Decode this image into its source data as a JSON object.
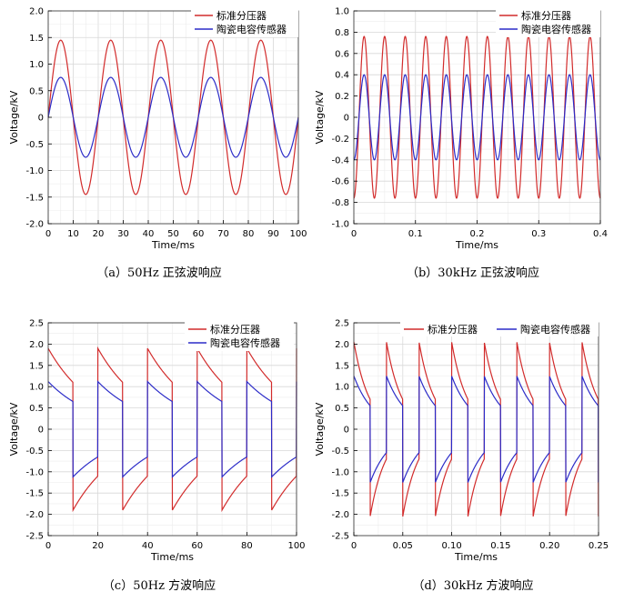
{
  "chart_data": [
    {
      "id": "a",
      "type": "line",
      "caption": "（a）50Hz 正弦波响应",
      "xlabel": "Time/ms",
      "ylabel": "Voltage/kV",
      "xlim": [
        0,
        100
      ],
      "ylim": [
        -2.0,
        2.0
      ],
      "xticks": [
        0,
        10,
        20,
        30,
        40,
        50,
        60,
        70,
        80,
        90,
        100
      ],
      "yticks": [
        -2.0,
        -1.5,
        -1.0,
        -0.5,
        0,
        0.5,
        1.0,
        1.5,
        2.0
      ],
      "ytick_labels": [
        "-2.0",
        "-1.5",
        "-1.0",
        "-0.5",
        "0",
        "0.5",
        "1.0",
        "1.5",
        "2.0"
      ],
      "xtick_labels": [
        "0",
        "10",
        "20",
        "30",
        "40",
        "50",
        "60",
        "70",
        "80",
        "90",
        "100"
      ],
      "grid": true,
      "legend_position": "top-right",
      "waveform": "sine",
      "frequency_per_x_unit": 0.05,
      "series": [
        {
          "name": "标准分压器",
          "color": "#d22b2b",
          "amplitude": 1.45,
          "phase_deg": 0
        },
        {
          "name": "陶瓷电容传感器",
          "color": "#2b2bc8",
          "amplitude": 0.75,
          "phase_deg": 0
        }
      ]
    },
    {
      "id": "b",
      "type": "line",
      "caption": "（b）30kHz 正弦波响应",
      "xlabel": "Time/ms",
      "ylabel": "Voltage/kV",
      "xlim": [
        0,
        0.4
      ],
      "ylim": [
        -1.0,
        1.0
      ],
      "xticks": [
        0,
        0.1,
        0.2,
        0.3,
        0.4
      ],
      "xtick_labels": [
        "0",
        "0.1",
        "0.2",
        "0.3",
        "0.4"
      ],
      "yticks": [
        -1.0,
        -0.8,
        -0.6,
        -0.4,
        -0.2,
        0,
        0.2,
        0.4,
        0.6,
        0.8,
        1.0
      ],
      "ytick_labels": [
        "-1.0",
        "-0.8",
        "-0.6",
        "-0.4",
        "-0.2",
        "0",
        "0.2",
        "0.4",
        "0.6",
        "0.8",
        "1.0"
      ],
      "grid": true,
      "legend_position": "top-right",
      "waveform": "sine",
      "frequency_per_x_unit": 30,
      "series": [
        {
          "name": "标准分压器",
          "color": "#d22b2b",
          "amplitude": 0.76,
          "phase_deg": -90
        },
        {
          "name": "陶瓷电容传感器",
          "color": "#2b2bc8",
          "amplitude": 0.4,
          "phase_deg": -90
        }
      ]
    },
    {
      "id": "c",
      "type": "line",
      "caption": "（c）50Hz 方波响应",
      "xlabel": "Time/ms",
      "ylabel": "Voltage/kV",
      "xlim": [
        0,
        100
      ],
      "ylim": [
        -2.5,
        2.5
      ],
      "xticks": [
        0,
        20,
        40,
        60,
        80,
        100
      ],
      "xtick_labels": [
        "0",
        "20",
        "40",
        "60",
        "80",
        "100"
      ],
      "yticks": [
        -2.5,
        -2.0,
        -1.5,
        -1.0,
        -0.5,
        0,
        0.5,
        1.0,
        1.5,
        2.0,
        2.5
      ],
      "ytick_labels": [
        "-2.5",
        "-2.0",
        "-1.5",
        "-1.0",
        "-0.5",
        "0",
        "0.5",
        "1.0",
        "1.5",
        "2.0",
        "2.5"
      ],
      "grid": true,
      "legend_position": "top-right",
      "waveform": "square_decay",
      "period": 20,
      "first_edge": 10,
      "series": [
        {
          "name": "标准分压器",
          "color": "#d22b2b",
          "peak": 1.9,
          "end": 1.1
        },
        {
          "name": "陶瓷电容传感器",
          "color": "#2b2bc8",
          "peak": 1.12,
          "end": 0.65
        }
      ]
    },
    {
      "id": "d",
      "type": "line",
      "caption": "（d）30kHz 方波响应",
      "xlabel": "Time/ms",
      "ylabel": "Voltage/kV",
      "xlim": [
        0,
        0.25
      ],
      "ylim": [
        -2.5,
        2.5
      ],
      "xticks": [
        0,
        0.05,
        0.1,
        0.15,
        0.2,
        0.25
      ],
      "xtick_labels": [
        "0",
        "0.05",
        "0.10",
        "0.15",
        "0.20",
        "0.25"
      ],
      "yticks": [
        -2.5,
        -2.0,
        -1.5,
        -1.0,
        -0.5,
        0,
        0.5,
        1.0,
        1.5,
        2.0,
        2.5
      ],
      "ytick_labels": [
        "-2.5",
        "-2.0",
        "-1.5",
        "-1.0",
        "-0.5",
        "0",
        "0.5",
        "1.0",
        "1.5",
        "2.0",
        "2.5"
      ],
      "grid": true,
      "legend_position": "top-right",
      "waveform": "square_decay",
      "period": 0.0333,
      "first_edge": 0.0167,
      "series": [
        {
          "name": "标准分压器",
          "color": "#d22b2b",
          "peak": 2.05,
          "end": 0.7
        },
        {
          "name": "陶瓷电容传感器",
          "color": "#2b2bc8",
          "peak": 1.25,
          "end": 0.55
        }
      ]
    }
  ]
}
